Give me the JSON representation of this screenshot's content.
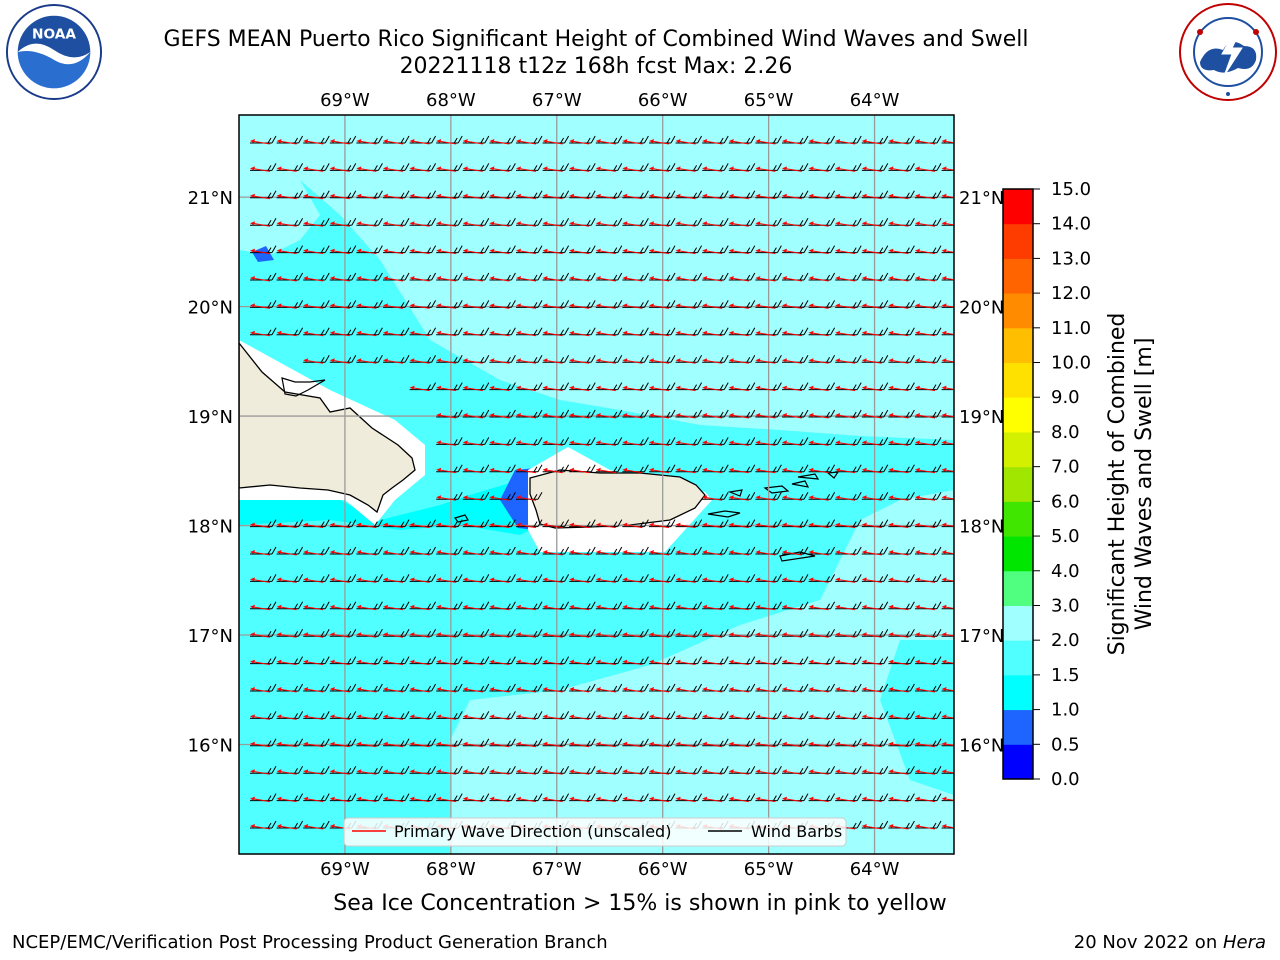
{
  "title_line1": "GEFS MEAN Puerto Rico Significant Height of Combined Wind Waves and Swell",
  "title_line2": "20221118 t12z 168h fcst   Max: 2.26",
  "logos": {
    "left": "noaa-logo",
    "right": "nws-logo",
    "left_text": "NOAA"
  },
  "map": {
    "lon_labels": [
      "69°W",
      "68°W",
      "67°W",
      "66°W",
      "65°W",
      "64°W"
    ],
    "lat_labels": [
      "21°N",
      "20°N",
      "19°N",
      "18°N",
      "17°N",
      "16°N"
    ],
    "lon_values": [
      -69,
      -68,
      -67,
      -66,
      -65,
      -64
    ],
    "lat_values": [
      21,
      20,
      19,
      18,
      17,
      16
    ],
    "lon_range": [
      -70,
      -63.25
    ],
    "lat_range": [
      15,
      21.75
    ],
    "legend": {
      "primary_wave": "Primary Wave Direction (unscaled)",
      "wind_barbs": "Wind Barbs"
    },
    "colors": {
      "land": "#f0ecdc",
      "wave_arrow": "#ff0000",
      "barb": "#000000"
    }
  },
  "colorbar": {
    "label": "Significant Height of Combined Wind Waves and Swell [m]",
    "label_line1": "Significant Height of Combined",
    "label_line2": "Wind Waves and Swell [m]",
    "ticks": [
      "15.0",
      "14.0",
      "13.0",
      "12.0",
      "11.0",
      "10.0",
      "9.0",
      "8.0",
      "7.0",
      "6.0",
      "5.0",
      "4.0",
      "3.0",
      "2.0",
      "1.5",
      "1.0",
      "0.5",
      "0.0"
    ],
    "levels": [
      0,
      0.5,
      1.0,
      1.5,
      2.0,
      3.0,
      4.0,
      5.0,
      6.0,
      7.0,
      8.0,
      9.0,
      10.0,
      11.0,
      12.0,
      13.0,
      14.0,
      15.0
    ],
    "colors": [
      "#0000ff",
      "#1e64ff",
      "#00ffff",
      "#50ffff",
      "#a0ffff",
      "#50ff80",
      "#00e600",
      "#40e600",
      "#a0e600",
      "#d2f000",
      "#ffff00",
      "#ffe100",
      "#ffbe00",
      "#ff8c00",
      "#ff6400",
      "#ff3c00",
      "#ff0000"
    ]
  },
  "subcaption": "Sea Ice Concentration > 15% is shown in pink to yellow",
  "footer_left": "NCEP/EMC/Verification Post Processing Product Generation Branch",
  "footer_right_prefix": "20 Nov 2022 on ",
  "footer_right_host": "Hera"
}
